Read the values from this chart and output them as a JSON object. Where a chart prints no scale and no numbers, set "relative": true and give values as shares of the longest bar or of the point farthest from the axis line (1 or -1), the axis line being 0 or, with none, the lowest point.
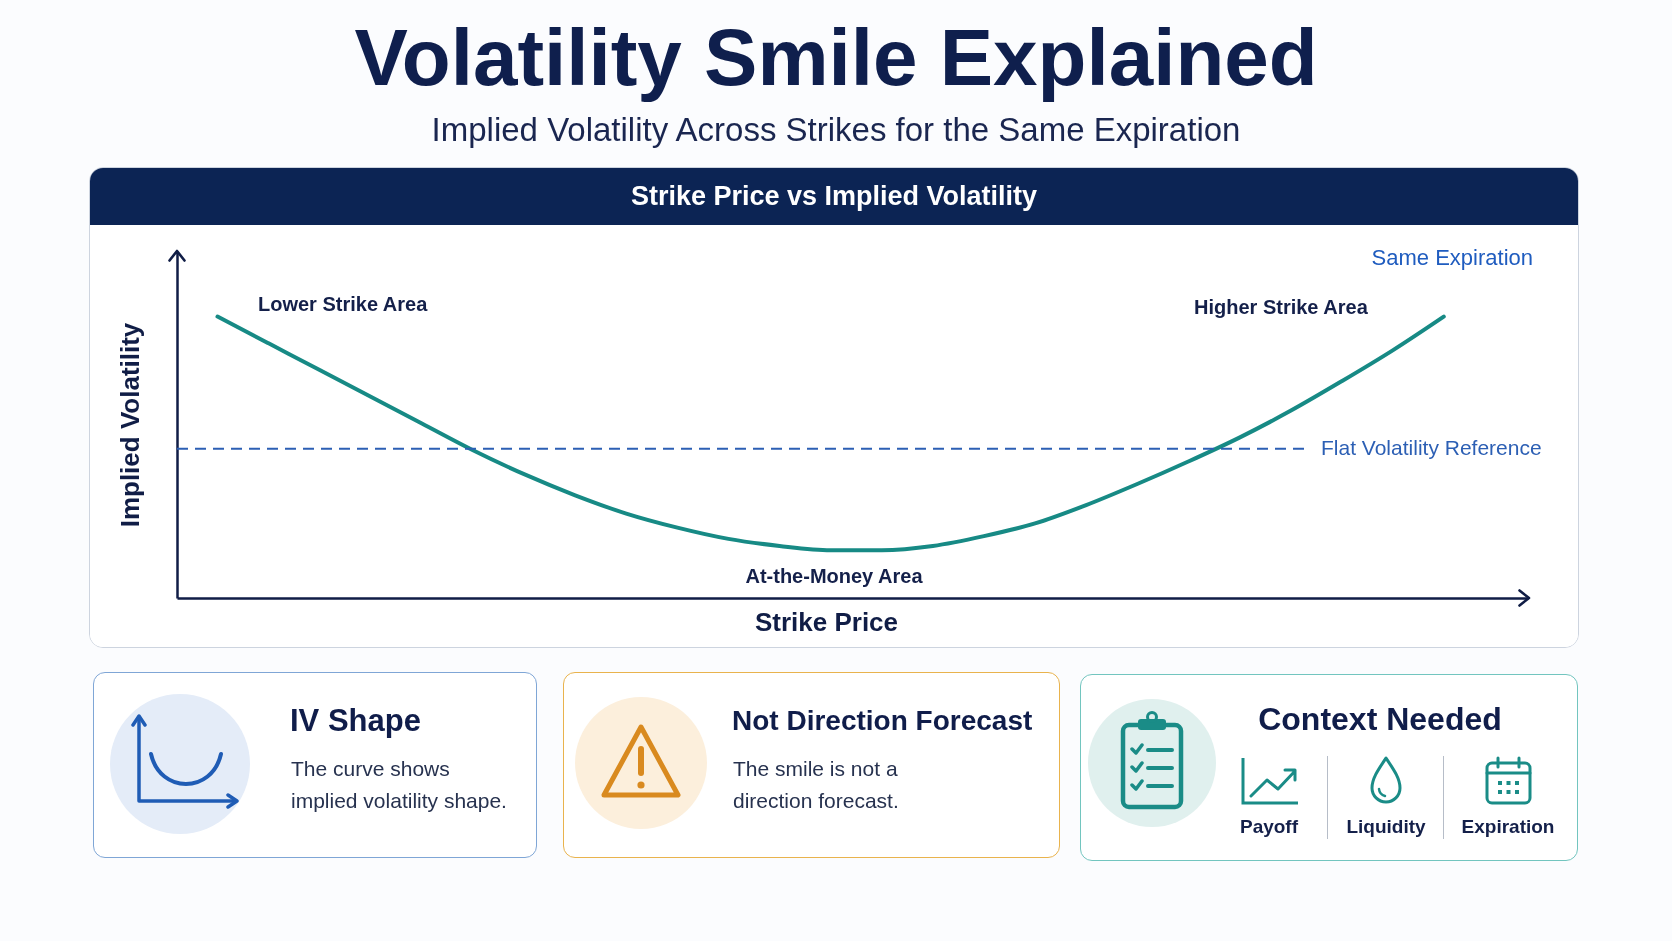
{
  "chart_data": [
    {
      "type": "line",
      "title": "Volatility Smile Explained",
      "subtitle": "Implied Volatility Across Strikes for the Same Expiration",
      "xlabel": "Strike Price",
      "ylabel": "Implied Volatility",
      "relative": true,
      "categories": [
        null,
        null,
        null,
        null,
        null,
        null,
        null,
        null,
        null,
        null,
        null,
        null,
        null,
        null,
        null,
        null,
        null,
        null,
        null,
        null,
        null,
        null,
        null,
        null,
        null
      ],
      "series": [
        {
          "color": "#178a85",
          "values": [
            1.0,
            0.905,
            0.81,
            0.715,
            0.62,
            0.525,
            0.44,
            0.365,
            0.3,
            0.25,
            0.21,
            0.185,
            0.17,
            0.17,
            0.185,
            0.22,
            0.265,
            0.33,
            0.405,
            0.485,
            0.57,
            0.665,
            0.77,
            0.88,
            1.0
          ]
        }
      ],
      "ref_lines": [
        {
          "axis": "y",
          "value": 0.53,
          "label": "Flat Volatility Reference",
          "color": "#2c5fb4",
          "line_style": "dashed"
        }
      ],
      "annotations": [
        "Strike Price vs Implied Volatility",
        "Same Expiration",
        "Lower Strike Area",
        "Higher Strike Area",
        "At-the-Money Area"
      ]
    },
    {
      "type": "other",
      "title": "IV Shape",
      "annotations": [
        "The curve shows implied volatility shape."
      ]
    },
    {
      "type": "other",
      "title": "Not Direction Forecast",
      "annotations": [
        "The smile is not a direction forecast."
      ]
    },
    {
      "type": "other",
      "title": "Context Needed",
      "annotations": [
        "Payoff",
        "Liquidity",
        "Expiration"
      ]
    }
  ]
}
